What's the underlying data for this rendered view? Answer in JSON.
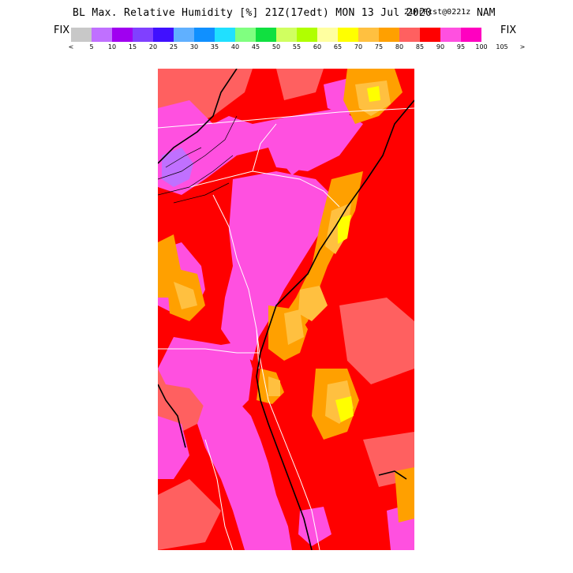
{
  "title": {
    "main": "BL Max. Relative Humidity [%] 21Z(17edt) MON 13 Jul 2020",
    "forecast": "21hrFcst@0221z",
    "model": "NAM"
  },
  "fix_left": "FIX",
  "fix_right": "FIX",
  "legend": {
    "colors": [
      "#c8c8c8",
      "#c070ff",
      "#a000f0",
      "#8040ff",
      "#4010ff",
      "#60b0ff",
      "#1090ff",
      "#20e0ff",
      "#80ff80",
      "#10e040",
      "#d0ff60",
      "#b0ff00",
      "#ffffa0",
      "#ffff00",
      "#ffc040",
      "#ffa000",
      "#ff6060",
      "#ff0000",
      "#ff50e0",
      "#ff00c0"
    ],
    "ticks": [
      "<",
      "5",
      "10",
      "15",
      "20",
      "25",
      "30",
      "35",
      "40",
      "45",
      "50",
      "55",
      "60",
      "65",
      "70",
      "75",
      "80",
      "85",
      "90",
      "95",
      "100",
      "105",
      ">"
    ]
  }
}
